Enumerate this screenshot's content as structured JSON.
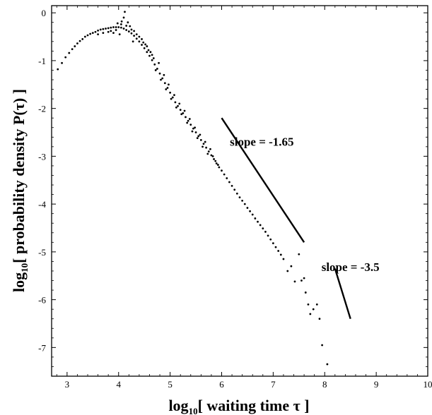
{
  "chart_data": {
    "type": "scatter",
    "xlabel": {
      "prefix": "log",
      "sub": "10",
      "main": "[  waiting time τ ]"
    },
    "ylabel": {
      "prefix": "log",
      "sub": "10",
      "main": "[  probability density P(τ) ]"
    },
    "xlim": [
      2.7,
      10
    ],
    "ylim": [
      -7.6,
      0.15
    ],
    "xticks": [
      3,
      4,
      5,
      6,
      7,
      8,
      9,
      10
    ],
    "yticks": [
      0,
      -1,
      -2,
      -3,
      -4,
      -5,
      -6,
      -7
    ],
    "grid": false,
    "series": [
      {
        "points": [
          [
            2.82,
            -1.18
          ],
          [
            2.9,
            -1.05
          ],
          [
            2.97,
            -0.93
          ],
          [
            3.04,
            -0.84
          ],
          [
            3.1,
            -0.76
          ],
          [
            3.15,
            -0.7
          ],
          [
            3.2,
            -0.64
          ],
          [
            3.25,
            -0.59
          ],
          [
            3.3,
            -0.55
          ],
          [
            3.35,
            -0.5
          ],
          [
            3.4,
            -0.47
          ],
          [
            3.45,
            -0.44
          ],
          [
            3.5,
            -0.42
          ],
          [
            3.55,
            -0.4
          ],
          [
            3.6,
            -0.37
          ],
          [
            3.65,
            -0.35
          ],
          [
            3.7,
            -0.34
          ],
          [
            3.75,
            -0.33
          ],
          [
            3.8,
            -0.32
          ],
          [
            3.85,
            -0.31
          ],
          [
            3.9,
            -0.3
          ],
          [
            3.95,
            -0.3
          ],
          [
            4.0,
            -0.3
          ],
          [
            4.05,
            -0.31
          ],
          [
            4.1,
            -0.33
          ],
          [
            4.15,
            -0.36
          ],
          [
            4.2,
            -0.39
          ],
          [
            4.25,
            -0.43
          ],
          [
            4.3,
            -0.48
          ],
          [
            4.35,
            -0.54
          ],
          [
            4.4,
            -0.6
          ],
          [
            4.45,
            -0.67
          ],
          [
            4.5,
            -0.74
          ],
          [
            4.55,
            -0.82
          ],
          [
            4.6,
            -0.9
          ],
          [
            4.65,
            -0.99
          ],
          [
            4.7,
            -1.08
          ],
          [
            4.75,
            -1.17
          ],
          [
            4.8,
            -1.27
          ],
          [
            4.85,
            -1.37
          ],
          [
            4.9,
            -1.47
          ],
          [
            4.95,
            -1.57
          ],
          [
            5.0,
            -1.67
          ],
          [
            5.05,
            -1.77
          ],
          [
            5.1,
            -1.87
          ],
          [
            5.15,
            -1.95
          ],
          [
            5.2,
            -2.03
          ],
          [
            5.25,
            -2.1
          ],
          [
            5.3,
            -2.18
          ],
          [
            5.35,
            -2.26
          ],
          [
            5.4,
            -2.34
          ],
          [
            5.45,
            -2.42
          ],
          [
            5.5,
            -2.5
          ],
          [
            5.55,
            -2.58
          ],
          [
            5.6,
            -2.66
          ],
          [
            5.65,
            -2.74
          ],
          [
            5.7,
            -2.82
          ],
          [
            5.75,
            -2.9
          ],
          [
            5.8,
            -2.98
          ],
          [
            5.85,
            -3.06
          ],
          [
            5.9,
            -3.15
          ],
          [
            5.95,
            -3.23
          ],
          [
            6.0,
            -3.3
          ],
          [
            6.05,
            -3.38
          ],
          [
            6.1,
            -3.46
          ],
          [
            6.15,
            -3.54
          ],
          [
            6.2,
            -3.62
          ],
          [
            6.25,
            -3.7
          ],
          [
            6.3,
            -3.78
          ],
          [
            6.35,
            -3.86
          ],
          [
            6.4,
            -3.93
          ],
          [
            6.45,
            -4.0
          ],
          [
            6.5,
            -4.08
          ],
          [
            6.55,
            -4.15
          ],
          [
            6.6,
            -4.22
          ],
          [
            6.65,
            -4.3
          ],
          [
            6.7,
            -4.37
          ],
          [
            6.75,
            -4.44
          ],
          [
            6.8,
            -4.51
          ],
          [
            6.85,
            -4.58
          ],
          [
            6.9,
            -4.66
          ],
          [
            6.95,
            -4.74
          ],
          [
            7.0,
            -4.82
          ],
          [
            7.05,
            -4.9
          ],
          [
            7.1,
            -4.98
          ],
          [
            7.15,
            -5.06
          ],
          [
            7.2,
            -5.15
          ],
          [
            7.28,
            -5.4
          ],
          [
            7.35,
            -5.3
          ],
          [
            7.42,
            -5.62
          ],
          [
            7.5,
            -5.05
          ],
          [
            7.55,
            -5.6
          ],
          [
            7.6,
            -5.55
          ],
          [
            7.63,
            -5.85
          ],
          [
            7.68,
            -6.1
          ],
          [
            7.72,
            -6.3
          ],
          [
            7.78,
            -6.2
          ],
          [
            7.85,
            -6.1
          ],
          [
            7.9,
            -6.4
          ],
          [
            7.95,
            -6.95
          ],
          [
            8.05,
            -7.35
          ],
          [
            4.1,
            -0.1
          ],
          [
            4.12,
            0.02
          ],
          [
            4.06,
            -0.18
          ],
          [
            4.18,
            -0.2
          ],
          [
            3.98,
            -0.22
          ],
          [
            4.02,
            -0.45
          ],
          [
            3.9,
            -0.42
          ],
          [
            4.22,
            -0.28
          ],
          [
            4.3,
            -0.38
          ],
          [
            4.28,
            -0.6
          ],
          [
            4.4,
            -0.5
          ],
          [
            4.48,
            -0.62
          ],
          [
            4.55,
            -0.7
          ],
          [
            4.62,
            -0.82
          ],
          [
            4.68,
            -0.95
          ],
          [
            4.72,
            -1.2
          ],
          [
            4.78,
            -1.05
          ],
          [
            4.82,
            -1.4
          ],
          [
            4.88,
            -1.3
          ],
          [
            4.92,
            -1.6
          ],
          [
            4.97,
            -1.5
          ],
          [
            5.02,
            -1.8
          ],
          [
            5.08,
            -1.72
          ],
          [
            5.12,
            -1.98
          ],
          [
            5.18,
            -1.9
          ],
          [
            5.22,
            -2.12
          ],
          [
            5.28,
            -2.05
          ],
          [
            5.33,
            -2.3
          ],
          [
            5.38,
            -2.22
          ],
          [
            5.43,
            -2.48
          ],
          [
            5.48,
            -2.4
          ],
          [
            5.53,
            -2.62
          ],
          [
            5.58,
            -2.55
          ],
          [
            5.63,
            -2.8
          ],
          [
            5.68,
            -2.7
          ],
          [
            5.73,
            -2.95
          ],
          [
            5.78,
            -2.85
          ],
          [
            5.83,
            -3.0
          ],
          [
            5.88,
            -3.1
          ],
          [
            5.93,
            -3.18
          ],
          [
            3.6,
            -0.45
          ],
          [
            3.7,
            -0.42
          ],
          [
            3.8,
            -0.4
          ],
          [
            3.85,
            -0.38
          ],
          [
            3.95,
            -0.36
          ],
          [
            4.05,
            -0.24
          ],
          [
            4.15,
            -0.27
          ],
          [
            4.25,
            -0.35
          ],
          [
            4.35,
            -0.45
          ],
          [
            4.45,
            -0.55
          ],
          [
            4.52,
            -0.66
          ],
          [
            4.58,
            -0.78
          ],
          [
            4.65,
            -0.88
          ]
        ]
      }
    ],
    "annotations": [
      {
        "text": "slope = -1.65",
        "x": 6.78,
        "y": -2.78,
        "line": [
          [
            6.0,
            -2.2
          ],
          [
            7.6,
            -4.8
          ]
        ]
      },
      {
        "text": "slope = -3.5",
        "x": 8.5,
        "y": -5.4,
        "line": [
          [
            8.2,
            -5.35
          ],
          [
            8.5,
            -6.4
          ]
        ]
      }
    ]
  }
}
